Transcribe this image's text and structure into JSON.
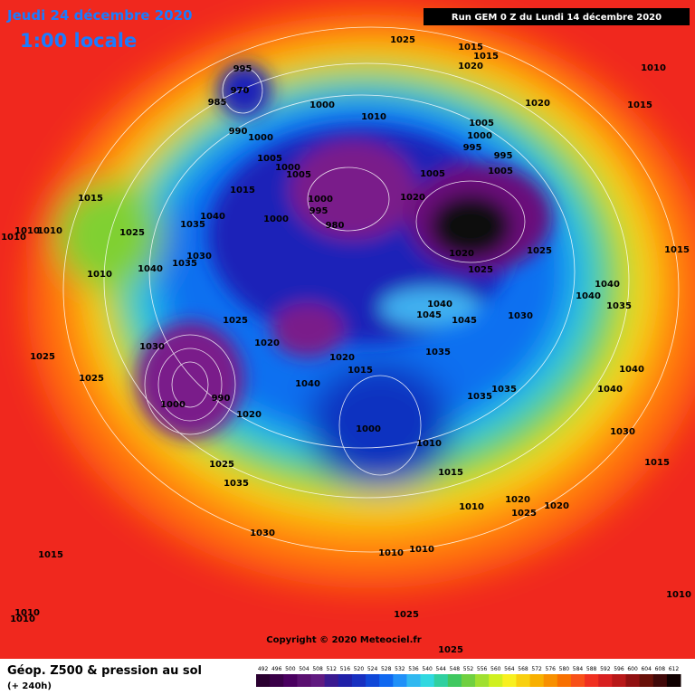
{
  "header": {
    "date": "Jeudi 24 décembre 2020",
    "time": "1:00 locale",
    "run": "Run GEM 0 Z du Lundi 14 décembre 2020"
  },
  "map": {
    "copyright": "Copyright © 2020 Meteociel.fr",
    "pressure_labels": [
      1025,
      1015,
      1015,
      1020,
      1010,
      995,
      970,
      985,
      1000,
      1010,
      1020,
      1015,
      990,
      1000,
      1005,
      1000,
      995,
      995,
      1005,
      1000,
      1005,
      1005,
      1015,
      1005,
      1020,
      1015,
      1000,
      995,
      980,
      1040,
      1035,
      1000,
      1010,
      1010,
      1025,
      1010,
      1020,
      1025,
      1015,
      1030,
      1035,
      1025,
      1040,
      1010,
      1040,
      1040,
      1035,
      1040,
      1045,
      1045,
      1030,
      1025,
      1020,
      1030,
      1035,
      1020,
      1025,
      1015,
      1040,
      1025,
      1040,
      1035,
      1040,
      1035,
      1000,
      990,
      1020,
      1000,
      1030,
      1010,
      1025,
      1015,
      1015,
      1035,
      1010,
      1020,
      1020,
      1025,
      1030,
      1010,
      1010,
      1015,
      1010,
      1025,
      1010,
      1010,
      1025
    ]
  },
  "legend": {
    "title": "Géop. Z500 & pression au sol",
    "lead": "(+ 240h)",
    "scale": [
      492,
      496,
      500,
      504,
      508,
      512,
      516,
      520,
      524,
      528,
      532,
      536,
      540,
      544,
      548,
      552,
      556,
      560,
      564,
      568,
      572,
      576,
      580,
      584,
      588,
      592,
      596,
      600,
      604,
      608,
      612
    ]
  }
}
